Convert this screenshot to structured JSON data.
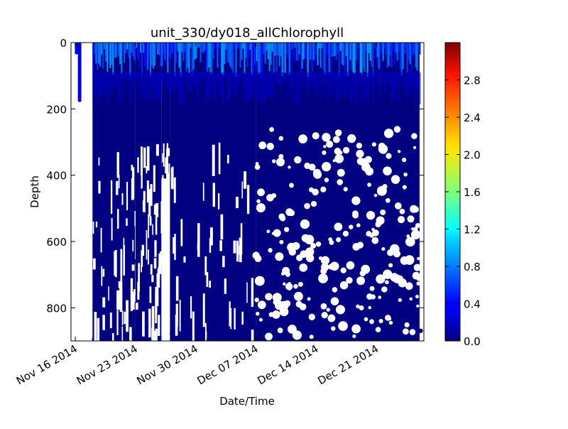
{
  "chart_data": {
    "type": "scatter",
    "title": "unit_330/dy018_allChlorophyll",
    "xlabel": "Date/Time",
    "ylabel": "Depth",
    "x_axis": {
      "type": "date",
      "range": [
        "2014-11-15T12:00",
        "2014-12-26T12:00"
      ],
      "ticks": [
        "2014-11-16",
        "2014-11-23",
        "2014-11-30",
        "2014-12-07",
        "2014-12-14",
        "2014-12-21"
      ],
      "tick_labels": [
        "Nov 16 2014",
        "Nov 23 2014",
        "Nov 30 2014",
        "Dec 07 2014",
        "Dec 14 2014",
        "Dec 21 2014"
      ]
    },
    "y_axis": {
      "range": [
        0,
        900
      ],
      "inverted": true,
      "ticks": [
        0,
        200,
        400,
        600,
        800
      ],
      "tick_labels": [
        "0",
        "200",
        "400",
        "600",
        "800"
      ]
    },
    "colorbar": {
      "label": "",
      "colormap": "jet",
      "range": [
        0.0,
        3.2
      ],
      "ticks": [
        0.0,
        0.4,
        0.8,
        1.2,
        1.6,
        2.0,
        2.4,
        2.8
      ],
      "tick_labels": [
        "0.0",
        "0.4",
        "0.8",
        "1.2",
        "1.6",
        "2.0",
        "2.4",
        "2.8"
      ]
    },
    "grid": false,
    "legend": "none",
    "profiles": [
      {
        "start": "2014-11-16",
        "end": "2014-11-16",
        "max_depth": 30
      },
      {
        "start": "2014-11-16",
        "end": "2014-11-17",
        "max_depth": 175
      },
      {
        "start": "2014-11-18",
        "end": "2014-11-23",
        "max_depth": 900
      },
      {
        "start": "2014-11-23",
        "end": "2014-11-26",
        "max_depth": 900
      },
      {
        "start": "2014-11-26",
        "end": "2014-11-27",
        "max_depth": 410
      },
      {
        "start": "2014-11-27",
        "end": "2014-12-07",
        "max_depth": 900
      },
      {
        "start": "2014-12-07",
        "end": "2014-12-26",
        "max_depth": 900
      }
    ],
    "surface_values": [
      0.4,
      1.0
    ],
    "deep_values": [
      0.0,
      0.1
    ]
  }
}
